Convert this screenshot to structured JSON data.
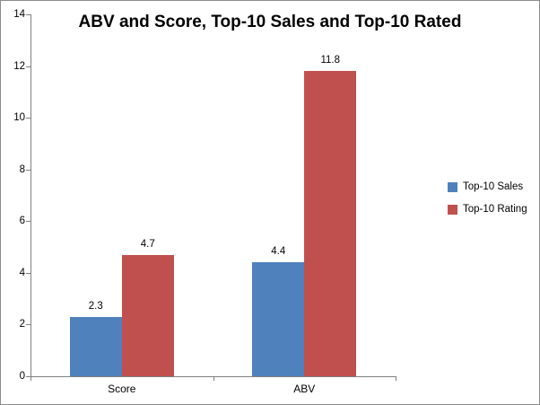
{
  "chart_data": {
    "type": "bar",
    "title": "ABV and Score, Top-10 Sales and Top-10 Rated",
    "categories": [
      "Score",
      "ABV"
    ],
    "series": [
      {
        "name": "Top-10 Sales",
        "color": "#4F81BD",
        "values": [
          2.3,
          4.4
        ],
        "labels": [
          "2.3",
          "4.4"
        ]
      },
      {
        "name": "Top-10 Rating",
        "color": "#C0504D",
        "values": [
          4.7,
          11.8
        ],
        "labels": [
          "4.7",
          "11.8"
        ]
      }
    ],
    "xlabel": "",
    "ylabel": "",
    "ylim": [
      0,
      14
    ],
    "yticks": [
      "0",
      "2",
      "4",
      "6",
      "8",
      "10",
      "12",
      "14"
    ],
    "grid": false,
    "legend_position": "right",
    "colors": {
      "axis": "#808080",
      "border": "#8C8C8C",
      "background": "#FFFFFF",
      "text": "#000000"
    }
  }
}
